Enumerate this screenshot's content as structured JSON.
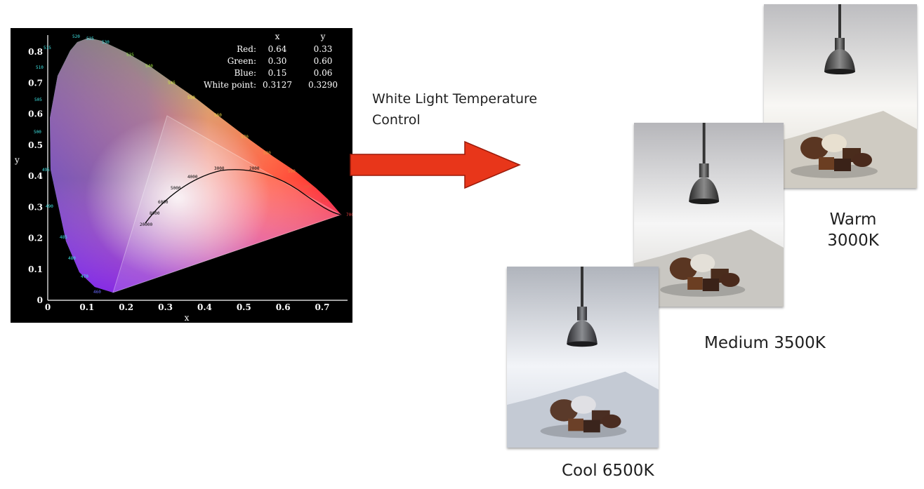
{
  "chromaticity_chart": {
    "y_ticks": [
      "0",
      "0.1",
      "0.2",
      "0.3",
      "0.4",
      "0.5",
      "0.6",
      "0.7",
      "0.8"
    ],
    "x_ticks": [
      "0",
      "0.1",
      "0.2",
      "0.3",
      "0.4",
      "0.5",
      "0.6",
      "0.7"
    ],
    "x_axis_label": "x",
    "y_axis_label": "y",
    "table": {
      "header": [
        "",
        "x",
        "y"
      ],
      "rows": [
        {
          "name": "Red:",
          "x": "0.64",
          "y": "0.33"
        },
        {
          "name": "Green:",
          "x": "0.30",
          "y": "0.60"
        },
        {
          "name": "Blue:",
          "x": "0.15",
          "y": "0.06"
        },
        {
          "name": "White point:",
          "x": "0.3127",
          "y": "0.3290"
        }
      ]
    },
    "background_color": "#000000",
    "axis_color": "#ffffff"
  },
  "arrow": {
    "color": "#e8361a",
    "outline": "#9a1a0a"
  },
  "caption": {
    "line1": "White Light Temperature",
    "line2": "Control"
  },
  "photos": {
    "warm": {
      "label_line1": "Warm",
      "label_line2": "3000K",
      "tint": "#f2efe8"
    },
    "medium": {
      "label": "Medium 3500K",
      "tint": "#eeeef0"
    },
    "cool": {
      "label": "Cool 6500K",
      "tint": "#e8ecf2"
    }
  }
}
